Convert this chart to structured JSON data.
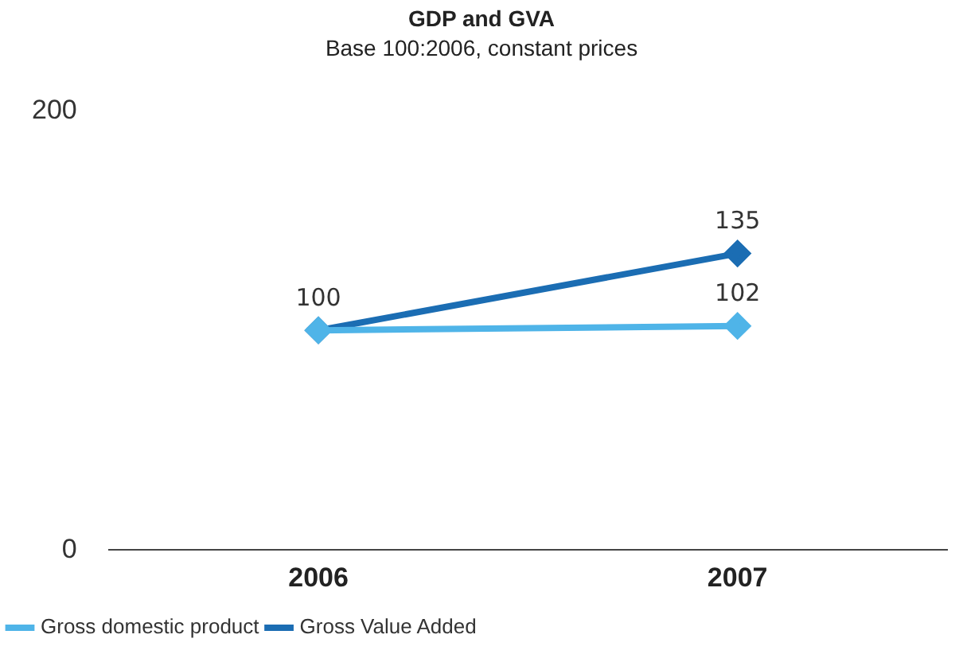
{
  "chart_data": {
    "type": "line",
    "title": "GDP and GVA",
    "subtitle": "Base 100:2006, constant prices",
    "categories": [
      "2006",
      "2007"
    ],
    "series": [
      {
        "name": "Gross domestic product",
        "color": "#4fb4e8",
        "values": [
          100,
          102
        ],
        "value_labels": [
          null,
          "102"
        ]
      },
      {
        "name": "Gross Value Added",
        "color": "#1b6db3",
        "values": [
          100,
          135
        ],
        "value_labels": [
          "100",
          "135"
        ]
      }
    ],
    "ylim": [
      0,
      200
    ],
    "yticks": [
      0,
      200
    ],
    "grid": false,
    "legend": "bottom left",
    "marker": "diamond",
    "line_style": "solid"
  }
}
